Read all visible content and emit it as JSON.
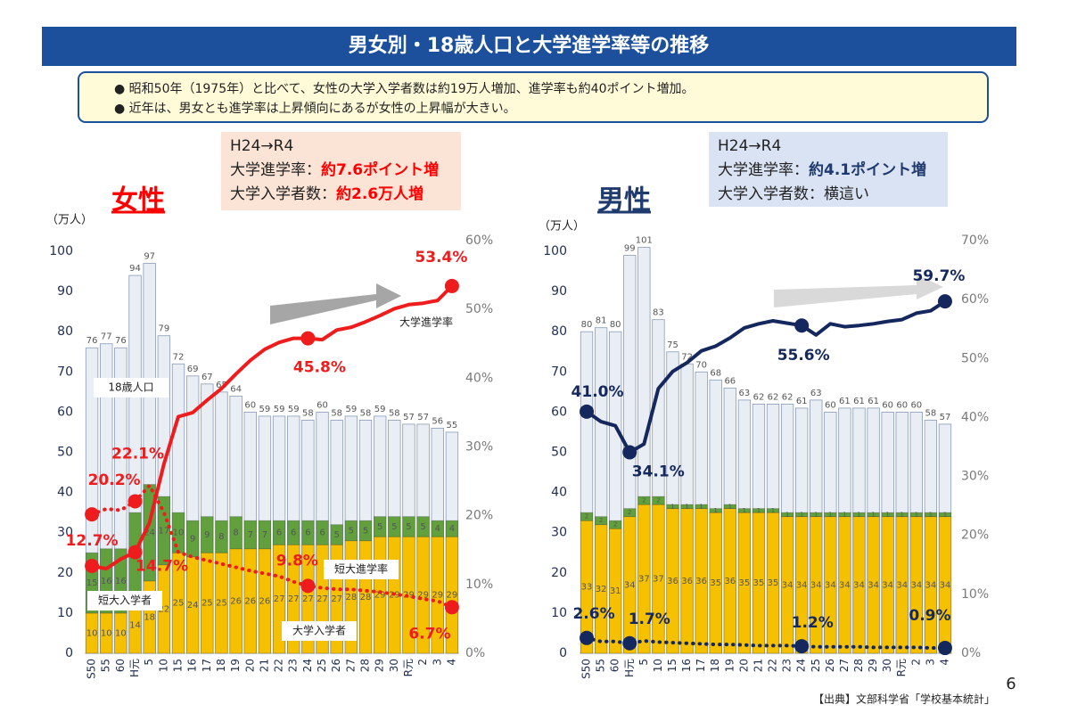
{
  "header": {
    "title": "男女別・18歳人口と大学進学率等の推移"
  },
  "bullets": [
    "●  昭和50年（1975年）と比べて、女性の大学入学者数は約19万人増加、進学率も約40ポイント増加。",
    "●  近年は、男女とも進学率は上昇傾向にあるが女性の上昇幅が大きい。"
  ],
  "source": "【出典】文部科学省「学校基本統計」",
  "page_number": "6",
  "chart_data": [
    {
      "type": "bar",
      "title": "女性",
      "y_unit": "（万人）",
      "title_color": "#ff0000",
      "callout": [
        [
          "H24→R4"
        ],
        [
          "大学進学率：",
          "約7.6ポイント増"
        ],
        [
          "大学入学者数：",
          "約2.6万人増"
        ]
      ],
      "callout_highlight_color": "#ff0000",
      "callout_fill": "#fbe3d6",
      "categories": [
        "S50",
        "55",
        "60",
        "H元",
        "5",
        "10",
        "15",
        "16",
        "17",
        "18",
        "19",
        "20",
        "21",
        "22",
        "23",
        "24",
        "25",
        "26",
        "27",
        "28",
        "29",
        "30",
        "R元",
        "2",
        "3",
        "4"
      ],
      "ylim": [
        0,
        100
      ],
      "yticks": [
        0,
        10,
        20,
        30,
        40,
        50,
        60,
        70,
        80,
        90,
        100
      ],
      "y2lim": [
        0,
        60
      ],
      "y2ticks": [
        {
          "value": 0,
          "label": "0%"
        },
        {
          "value": 10,
          "label": "10%"
        },
        {
          "value": 20,
          "label": "20%"
        },
        {
          "value": 30,
          "label": "30%"
        },
        {
          "value": 40,
          "label": "40%"
        },
        {
          "value": 50,
          "label": "50%"
        },
        {
          "value": 60,
          "label": "60%"
        }
      ],
      "series": [
        {
          "name": "18歳人口",
          "type": "bar",
          "color": "#e9edf4",
          "values": [
            76,
            77,
            76,
            94,
            97,
            79,
            72,
            69,
            67,
            65,
            64,
            60,
            59,
            59,
            59,
            58,
            60,
            58,
            59,
            58,
            59,
            58,
            57,
            57,
            56,
            55
          ]
        },
        {
          "name": "大学入学者",
          "type": "bar",
          "stack": "entrants",
          "color": "#f5c000",
          "values": [
            10,
            10,
            10,
            14,
            18,
            22,
            25,
            24,
            25,
            25,
            26,
            26,
            26,
            27,
            27,
            27,
            27,
            27,
            28,
            28,
            29,
            29,
            29,
            29,
            29,
            29
          ]
        },
        {
          "name": "短大入学者",
          "type": "bar",
          "stack": "entrants",
          "color": "#62a03e",
          "values": [
            15,
            16,
            16,
            21,
            24,
            17,
            10,
            9,
            9,
            8,
            8,
            7,
            7,
            6,
            6,
            6,
            6,
            5,
            5,
            5,
            5,
            5,
            5,
            5,
            4,
            4
          ]
        },
        {
          "name": "大学進学率",
          "type": "line",
          "axis": "y2",
          "style": "solid",
          "color": "#ee1c1c",
          "values": [
            12.7,
            12.3,
            13.7,
            14.7,
            19.0,
            27.5,
            34.4,
            35.0,
            36.8,
            38.5,
            40.6,
            42.6,
            44.2,
            45.2,
            45.8,
            45.8,
            45.6,
            47.0,
            47.4,
            48.2,
            49.1,
            50.1,
            50.7,
            50.9,
            51.3,
            53.4
          ],
          "value_labels": [
            "12.7%",
            null,
            null,
            "14.7%",
            null,
            null,
            null,
            null,
            null,
            null,
            null,
            null,
            null,
            null,
            null,
            "45.8%",
            null,
            null,
            null,
            null,
            null,
            null,
            null,
            null,
            null,
            "53.4%"
          ]
        },
        {
          "name": "短大進学率",
          "type": "line",
          "axis": "y2",
          "style": "dotted",
          "color": "#ee1c1c",
          "values": [
            20.2,
            21.0,
            20.8,
            22.1,
            24.4,
            20.5,
            14.7,
            14.0,
            13.5,
            13.0,
            12.5,
            12.0,
            11.6,
            11.2,
            10.4,
            9.8,
            9.5,
            9.3,
            9.3,
            9.1,
            8.9,
            8.6,
            8.3,
            7.9,
            7.6,
            6.7
          ],
          "value_labels": [
            "20.2%",
            null,
            null,
            "22.1%",
            null,
            null,
            null,
            null,
            null,
            null,
            null,
            null,
            null,
            null,
            null,
            "9.8%",
            null,
            null,
            null,
            null,
            null,
            null,
            null,
            null,
            null,
            "6.7%"
          ]
        }
      ]
    },
    {
      "type": "bar",
      "title": "男性",
      "y_unit": "（万人）",
      "title_color": "#1f3a6e",
      "callout": [
        [
          "H24→R4"
        ],
        [
          "大学進学率：",
          "約4.1ポイント増"
        ],
        [
          "大学入学者数：横這い"
        ]
      ],
      "callout_highlight_color": "#1f3a6e",
      "callout_fill": "#dae3f3",
      "categories": [
        "S50",
        "55",
        "60",
        "H元",
        "5",
        "10",
        "15",
        "16",
        "17",
        "18",
        "19",
        "20",
        "21",
        "22",
        "23",
        "24",
        "25",
        "26",
        "27",
        "28",
        "29",
        "30",
        "R元",
        "2",
        "3",
        "4"
      ],
      "ylim": [
        0,
        100
      ],
      "yticks": [
        0,
        10,
        20,
        30,
        40,
        50,
        60,
        70,
        80,
        90,
        100
      ],
      "y2lim": [
        0,
        70
      ],
      "y2ticks": [
        {
          "value": 0,
          "label": "0%"
        },
        {
          "value": 10,
          "label": "10%"
        },
        {
          "value": 20,
          "label": "20%"
        },
        {
          "value": 30,
          "label": "30%"
        },
        {
          "value": 40,
          "label": "40%"
        },
        {
          "value": 50,
          "label": "50%"
        },
        {
          "value": 60,
          "label": "60%"
        },
        {
          "value": 70,
          "label": "70%"
        }
      ],
      "series": [
        {
          "type": "bar",
          "color": "#e9edf4",
          "values": [
            80,
            81,
            80,
            99,
            101,
            83,
            75,
            72,
            70,
            68,
            66,
            63,
            62,
            62,
            62,
            61,
            63,
            60,
            61,
            61,
            61,
            60,
            60,
            60,
            58,
            57
          ]
        },
        {
          "type": "bar",
          "stack": "entrants",
          "color": "#f5c000",
          "values": [
            33,
            32,
            31,
            34,
            37,
            37,
            36,
            36,
            36,
            35,
            36,
            35,
            35,
            35,
            34,
            34,
            34,
            34,
            34,
            34,
            34,
            34,
            34,
            34,
            34,
            34
          ]
        },
        {
          "type": "bar",
          "stack": "entrants",
          "color": "#62a03e",
          "values": [
            2,
            2,
            2,
            2,
            2,
            2,
            1,
            1,
            1,
            1,
            1,
            1,
            1,
            1,
            1,
            1,
            1,
            1,
            1,
            1,
            1,
            1,
            1,
            1,
            1,
            1
          ]
        },
        {
          "type": "line",
          "axis": "y2",
          "style": "solid",
          "color": "#14285e",
          "values": [
            41.0,
            39.3,
            38.6,
            34.1,
            35.5,
            44.9,
            47.8,
            49.3,
            51.3,
            52.1,
            53.5,
            55.2,
            55.9,
            56.4,
            56.0,
            55.6,
            54.0,
            55.9,
            55.4,
            55.6,
            55.9,
            56.3,
            56.6,
            57.7,
            58.1,
            59.7
          ],
          "value_labels": [
            "41.0%",
            null,
            null,
            "34.1%",
            null,
            null,
            null,
            null,
            null,
            null,
            null,
            null,
            null,
            null,
            null,
            "55.6%",
            null,
            null,
            null,
            null,
            null,
            null,
            null,
            null,
            null,
            "59.7%"
          ]
        },
        {
          "type": "line",
          "axis": "y2",
          "style": "dotted",
          "color": "#14285e",
          "values": [
            2.6,
            2.0,
            2.0,
            1.7,
            2.1,
            1.9,
            1.8,
            1.7,
            1.6,
            1.5,
            1.5,
            1.4,
            1.3,
            1.3,
            1.3,
            1.2,
            1.1,
            1.1,
            1.1,
            1.1,
            1.0,
            1.0,
            1.0,
            1.0,
            0.9,
            0.9
          ],
          "value_labels": [
            "2.6%",
            null,
            null,
            "1.7%",
            null,
            null,
            null,
            null,
            null,
            null,
            null,
            null,
            null,
            null,
            null,
            "1.2%",
            null,
            null,
            null,
            null,
            null,
            null,
            null,
            null,
            null,
            "0.9%"
          ]
        }
      ]
    }
  ]
}
